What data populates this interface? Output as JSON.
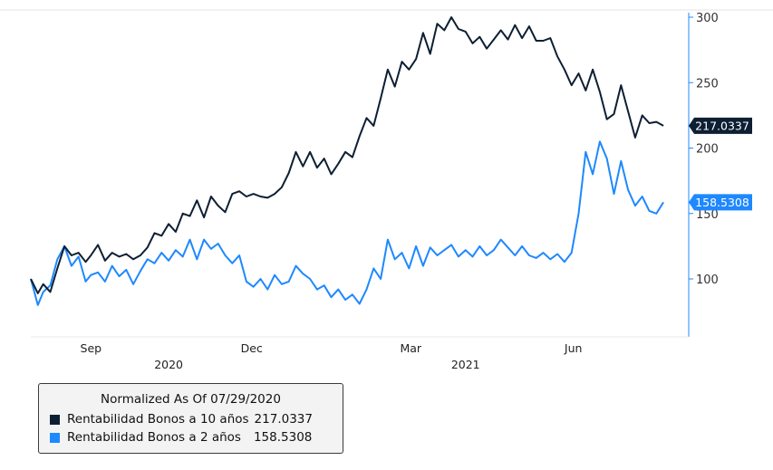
{
  "chart_data": {
    "type": "line",
    "y_axis_side": "right",
    "ylim": [
      70,
      305
    ],
    "y_ticks": [
      100,
      150,
      200,
      250,
      300
    ],
    "x_month_labels": [
      {
        "label": "Sep",
        "date": "2020-09-01"
      },
      {
        "label": "Dec",
        "date": "2020-12-01"
      },
      {
        "label": "Mar",
        "date": "2021-03-01"
      },
      {
        "label": "Jun",
        "date": "2021-06-01"
      }
    ],
    "x_year_labels": [
      {
        "label": "2020",
        "date": "2020-10-15"
      },
      {
        "label": "2021",
        "date": "2021-04-01"
      }
    ],
    "xlim": [
      "2020-07-29",
      "2021-07-25"
    ],
    "legend": {
      "title": "Normalized As Of 07/29/2020",
      "placement": "bottom-left"
    },
    "series": [
      {
        "name": "Rentabilidad Bonos a 10 años",
        "value_label": "217.0337",
        "last_value": 217.0337,
        "color": "#0d1f33",
        "points": [
          [
            "2020-07-29",
            100
          ],
          [
            "2020-08-02",
            89
          ],
          [
            "2020-08-05",
            96
          ],
          [
            "2020-08-09",
            90
          ],
          [
            "2020-08-13",
            108
          ],
          [
            "2020-08-17",
            125
          ],
          [
            "2020-08-21",
            118
          ],
          [
            "2020-08-25",
            120
          ],
          [
            "2020-08-29",
            113
          ],
          [
            "2020-09-01",
            118
          ],
          [
            "2020-09-05",
            126
          ],
          [
            "2020-09-09",
            114
          ],
          [
            "2020-09-13",
            120
          ],
          [
            "2020-09-17",
            117
          ],
          [
            "2020-09-21",
            119
          ],
          [
            "2020-09-25",
            115
          ],
          [
            "2020-09-29",
            118
          ],
          [
            "2020-10-03",
            124
          ],
          [
            "2020-10-07",
            135
          ],
          [
            "2020-10-11",
            133
          ],
          [
            "2020-10-15",
            142
          ],
          [
            "2020-10-19",
            136
          ],
          [
            "2020-10-23",
            150
          ],
          [
            "2020-10-27",
            148
          ],
          [
            "2020-10-31",
            160
          ],
          [
            "2020-11-04",
            147
          ],
          [
            "2020-11-08",
            163
          ],
          [
            "2020-11-12",
            156
          ],
          [
            "2020-11-16",
            151
          ],
          [
            "2020-11-20",
            165
          ],
          [
            "2020-11-24",
            167
          ],
          [
            "2020-11-28",
            163
          ],
          [
            "2020-12-02",
            165
          ],
          [
            "2020-12-06",
            163
          ],
          [
            "2020-12-10",
            162
          ],
          [
            "2020-12-14",
            165
          ],
          [
            "2020-12-18",
            170
          ],
          [
            "2020-12-22",
            181
          ],
          [
            "2020-12-26",
            197
          ],
          [
            "2020-12-30",
            186
          ],
          [
            "2021-01-03",
            197
          ],
          [
            "2021-01-07",
            185
          ],
          [
            "2021-01-11",
            192
          ],
          [
            "2021-01-15",
            180
          ],
          [
            "2021-01-19",
            188
          ],
          [
            "2021-01-23",
            197
          ],
          [
            "2021-01-27",
            193
          ],
          [
            "2021-01-31",
            209
          ],
          [
            "2021-02-04",
            223
          ],
          [
            "2021-02-08",
            217
          ],
          [
            "2021-02-12",
            238
          ],
          [
            "2021-02-16",
            260
          ],
          [
            "2021-02-20",
            247
          ],
          [
            "2021-02-24",
            266
          ],
          [
            "2021-02-28",
            260
          ],
          [
            "2021-03-04",
            268
          ],
          [
            "2021-03-08",
            288
          ],
          [
            "2021-03-12",
            272
          ],
          [
            "2021-03-16",
            295
          ],
          [
            "2021-03-20",
            290
          ],
          [
            "2021-03-24",
            300
          ],
          [
            "2021-03-28",
            291
          ],
          [
            "2021-04-01",
            289
          ],
          [
            "2021-04-05",
            280
          ],
          [
            "2021-04-09",
            285
          ],
          [
            "2021-04-13",
            276
          ],
          [
            "2021-04-17",
            283
          ],
          [
            "2021-04-21",
            290
          ],
          [
            "2021-04-25",
            283
          ],
          [
            "2021-04-29",
            294
          ],
          [
            "2021-05-03",
            284
          ],
          [
            "2021-05-07",
            293
          ],
          [
            "2021-05-11",
            282
          ],
          [
            "2021-05-15",
            282
          ],
          [
            "2021-05-19",
            284
          ],
          [
            "2021-05-23",
            270
          ],
          [
            "2021-05-27",
            260
          ],
          [
            "2021-05-31",
            248
          ],
          [
            "2021-06-04",
            257
          ],
          [
            "2021-06-08",
            244
          ],
          [
            "2021-06-12",
            260
          ],
          [
            "2021-06-16",
            243
          ],
          [
            "2021-06-20",
            222
          ],
          [
            "2021-06-24",
            226
          ],
          [
            "2021-06-28",
            248
          ],
          [
            "2021-07-02",
            228
          ],
          [
            "2021-07-06",
            208
          ],
          [
            "2021-07-10",
            225
          ],
          [
            "2021-07-14",
            219
          ],
          [
            "2021-07-18",
            220
          ],
          [
            "2021-07-22",
            217.0337
          ]
        ]
      },
      {
        "name": "Rentabilidad Bonos a 2 años",
        "value_label": "158.5308",
        "last_value": 158.5308,
        "color": "#1e88ff",
        "points": [
          [
            "2020-07-29",
            100
          ],
          [
            "2020-08-02",
            80
          ],
          [
            "2020-08-05",
            90
          ],
          [
            "2020-08-09",
            95
          ],
          [
            "2020-08-13",
            115
          ],
          [
            "2020-08-17",
            125
          ],
          [
            "2020-08-21",
            110
          ],
          [
            "2020-08-25",
            117
          ],
          [
            "2020-08-29",
            98
          ],
          [
            "2020-09-01",
            103
          ],
          [
            "2020-09-05",
            105
          ],
          [
            "2020-09-09",
            98
          ],
          [
            "2020-09-13",
            110
          ],
          [
            "2020-09-17",
            102
          ],
          [
            "2020-09-21",
            107
          ],
          [
            "2020-09-25",
            96
          ],
          [
            "2020-09-29",
            106
          ],
          [
            "2020-10-03",
            115
          ],
          [
            "2020-10-07",
            112
          ],
          [
            "2020-10-11",
            120
          ],
          [
            "2020-10-15",
            114
          ],
          [
            "2020-10-19",
            122
          ],
          [
            "2020-10-23",
            117
          ],
          [
            "2020-10-27",
            130
          ],
          [
            "2020-10-31",
            115
          ],
          [
            "2020-11-04",
            130
          ],
          [
            "2020-11-08",
            123
          ],
          [
            "2020-11-12",
            127
          ],
          [
            "2020-11-16",
            118
          ],
          [
            "2020-11-20",
            112
          ],
          [
            "2020-11-24",
            118
          ],
          [
            "2020-11-28",
            98
          ],
          [
            "2020-12-02",
            94
          ],
          [
            "2020-12-06",
            100
          ],
          [
            "2020-12-10",
            92
          ],
          [
            "2020-12-14",
            103
          ],
          [
            "2020-12-18",
            96
          ],
          [
            "2020-12-22",
            98
          ],
          [
            "2020-12-26",
            110
          ],
          [
            "2020-12-30",
            104
          ],
          [
            "2021-01-03",
            100
          ],
          [
            "2021-01-07",
            92
          ],
          [
            "2021-01-11",
            95
          ],
          [
            "2021-01-15",
            86
          ],
          [
            "2021-01-19",
            92
          ],
          [
            "2021-01-23",
            84
          ],
          [
            "2021-01-27",
            88
          ],
          [
            "2021-01-31",
            81
          ],
          [
            "2021-02-04",
            92
          ],
          [
            "2021-02-08",
            108
          ],
          [
            "2021-02-12",
            100
          ],
          [
            "2021-02-16",
            130
          ],
          [
            "2021-02-20",
            115
          ],
          [
            "2021-02-24",
            120
          ],
          [
            "2021-02-28",
            108
          ],
          [
            "2021-03-04",
            125
          ],
          [
            "2021-03-08",
            110
          ],
          [
            "2021-03-12",
            124
          ],
          [
            "2021-03-16",
            118
          ],
          [
            "2021-03-20",
            122
          ],
          [
            "2021-03-24",
            126
          ],
          [
            "2021-03-28",
            117
          ],
          [
            "2021-04-01",
            122
          ],
          [
            "2021-04-05",
            117
          ],
          [
            "2021-04-09",
            125
          ],
          [
            "2021-04-13",
            118
          ],
          [
            "2021-04-17",
            122
          ],
          [
            "2021-04-21",
            130
          ],
          [
            "2021-04-25",
            124
          ],
          [
            "2021-04-29",
            118
          ],
          [
            "2021-05-03",
            125
          ],
          [
            "2021-05-07",
            118
          ],
          [
            "2021-05-11",
            116
          ],
          [
            "2021-05-15",
            120
          ],
          [
            "2021-05-19",
            115
          ],
          [
            "2021-05-23",
            119
          ],
          [
            "2021-05-27",
            113
          ],
          [
            "2021-05-31",
            120
          ],
          [
            "2021-06-04",
            150
          ],
          [
            "2021-06-08",
            197
          ],
          [
            "2021-06-12",
            180
          ],
          [
            "2021-06-16",
            205
          ],
          [
            "2021-06-20",
            192
          ],
          [
            "2021-06-24",
            165
          ],
          [
            "2021-06-28",
            190
          ],
          [
            "2021-07-02",
            168
          ],
          [
            "2021-07-06",
            156
          ],
          [
            "2021-07-10",
            163
          ],
          [
            "2021-07-14",
            152
          ],
          [
            "2021-07-18",
            150
          ],
          [
            "2021-07-22",
            158.5308
          ]
        ]
      }
    ]
  }
}
